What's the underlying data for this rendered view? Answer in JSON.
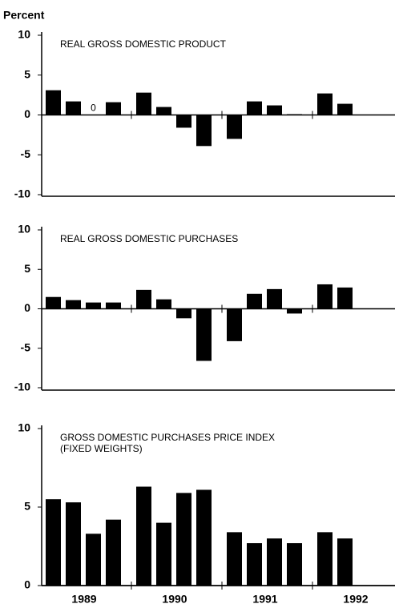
{
  "chart_data": [
    {
      "type": "bar",
      "title": "REAL GROSS DOMESTIC PRODUCT",
      "ylabel": "Percent",
      "values": [
        3.1,
        1.7,
        0,
        1.6,
        2.8,
        1.0,
        -1.6,
        -3.9,
        -3.0,
        1.7,
        1.2,
        0.1,
        2.7,
        1.4,
        null,
        null
      ],
      "value_labels": [
        null,
        null,
        "0",
        null,
        null,
        null,
        null,
        null,
        null,
        null,
        null,
        null,
        null,
        null,
        null,
        null
      ],
      "color": "#000000",
      "ylim": [
        -10,
        10
      ],
      "yticks": [
        -10,
        -5,
        0,
        5,
        10
      ]
    },
    {
      "type": "bar",
      "title": "REAL GROSS DOMESTIC PURCHASES",
      "values": [
        1.5,
        1.1,
        0.8,
        0.8,
        2.4,
        1.2,
        -1.2,
        -6.6,
        -4.1,
        1.9,
        2.5,
        -0.6,
        3.1,
        2.7,
        null,
        null
      ],
      "color": "#000000",
      "ylim": [
        -10,
        10
      ],
      "yticks": [
        -10,
        -5,
        0,
        5,
        10
      ]
    },
    {
      "type": "bar",
      "title": [
        "GROSS DOMESTIC PURCHASES PRICE INDEX",
        "(FIXED WEIGHTS)"
      ],
      "values": [
        5.5,
        5.3,
        3.3,
        4.2,
        6.3,
        4.0,
        5.9,
        6.1,
        3.4,
        2.7,
        3.0,
        2.7,
        3.4,
        3.0,
        null,
        null
      ],
      "color": "#000000",
      "ylim": [
        0,
        10
      ],
      "yticks": [
        0,
        5,
        10
      ],
      "x_labels": [
        "1989",
        "1990",
        "1991",
        "1992"
      ]
    }
  ]
}
